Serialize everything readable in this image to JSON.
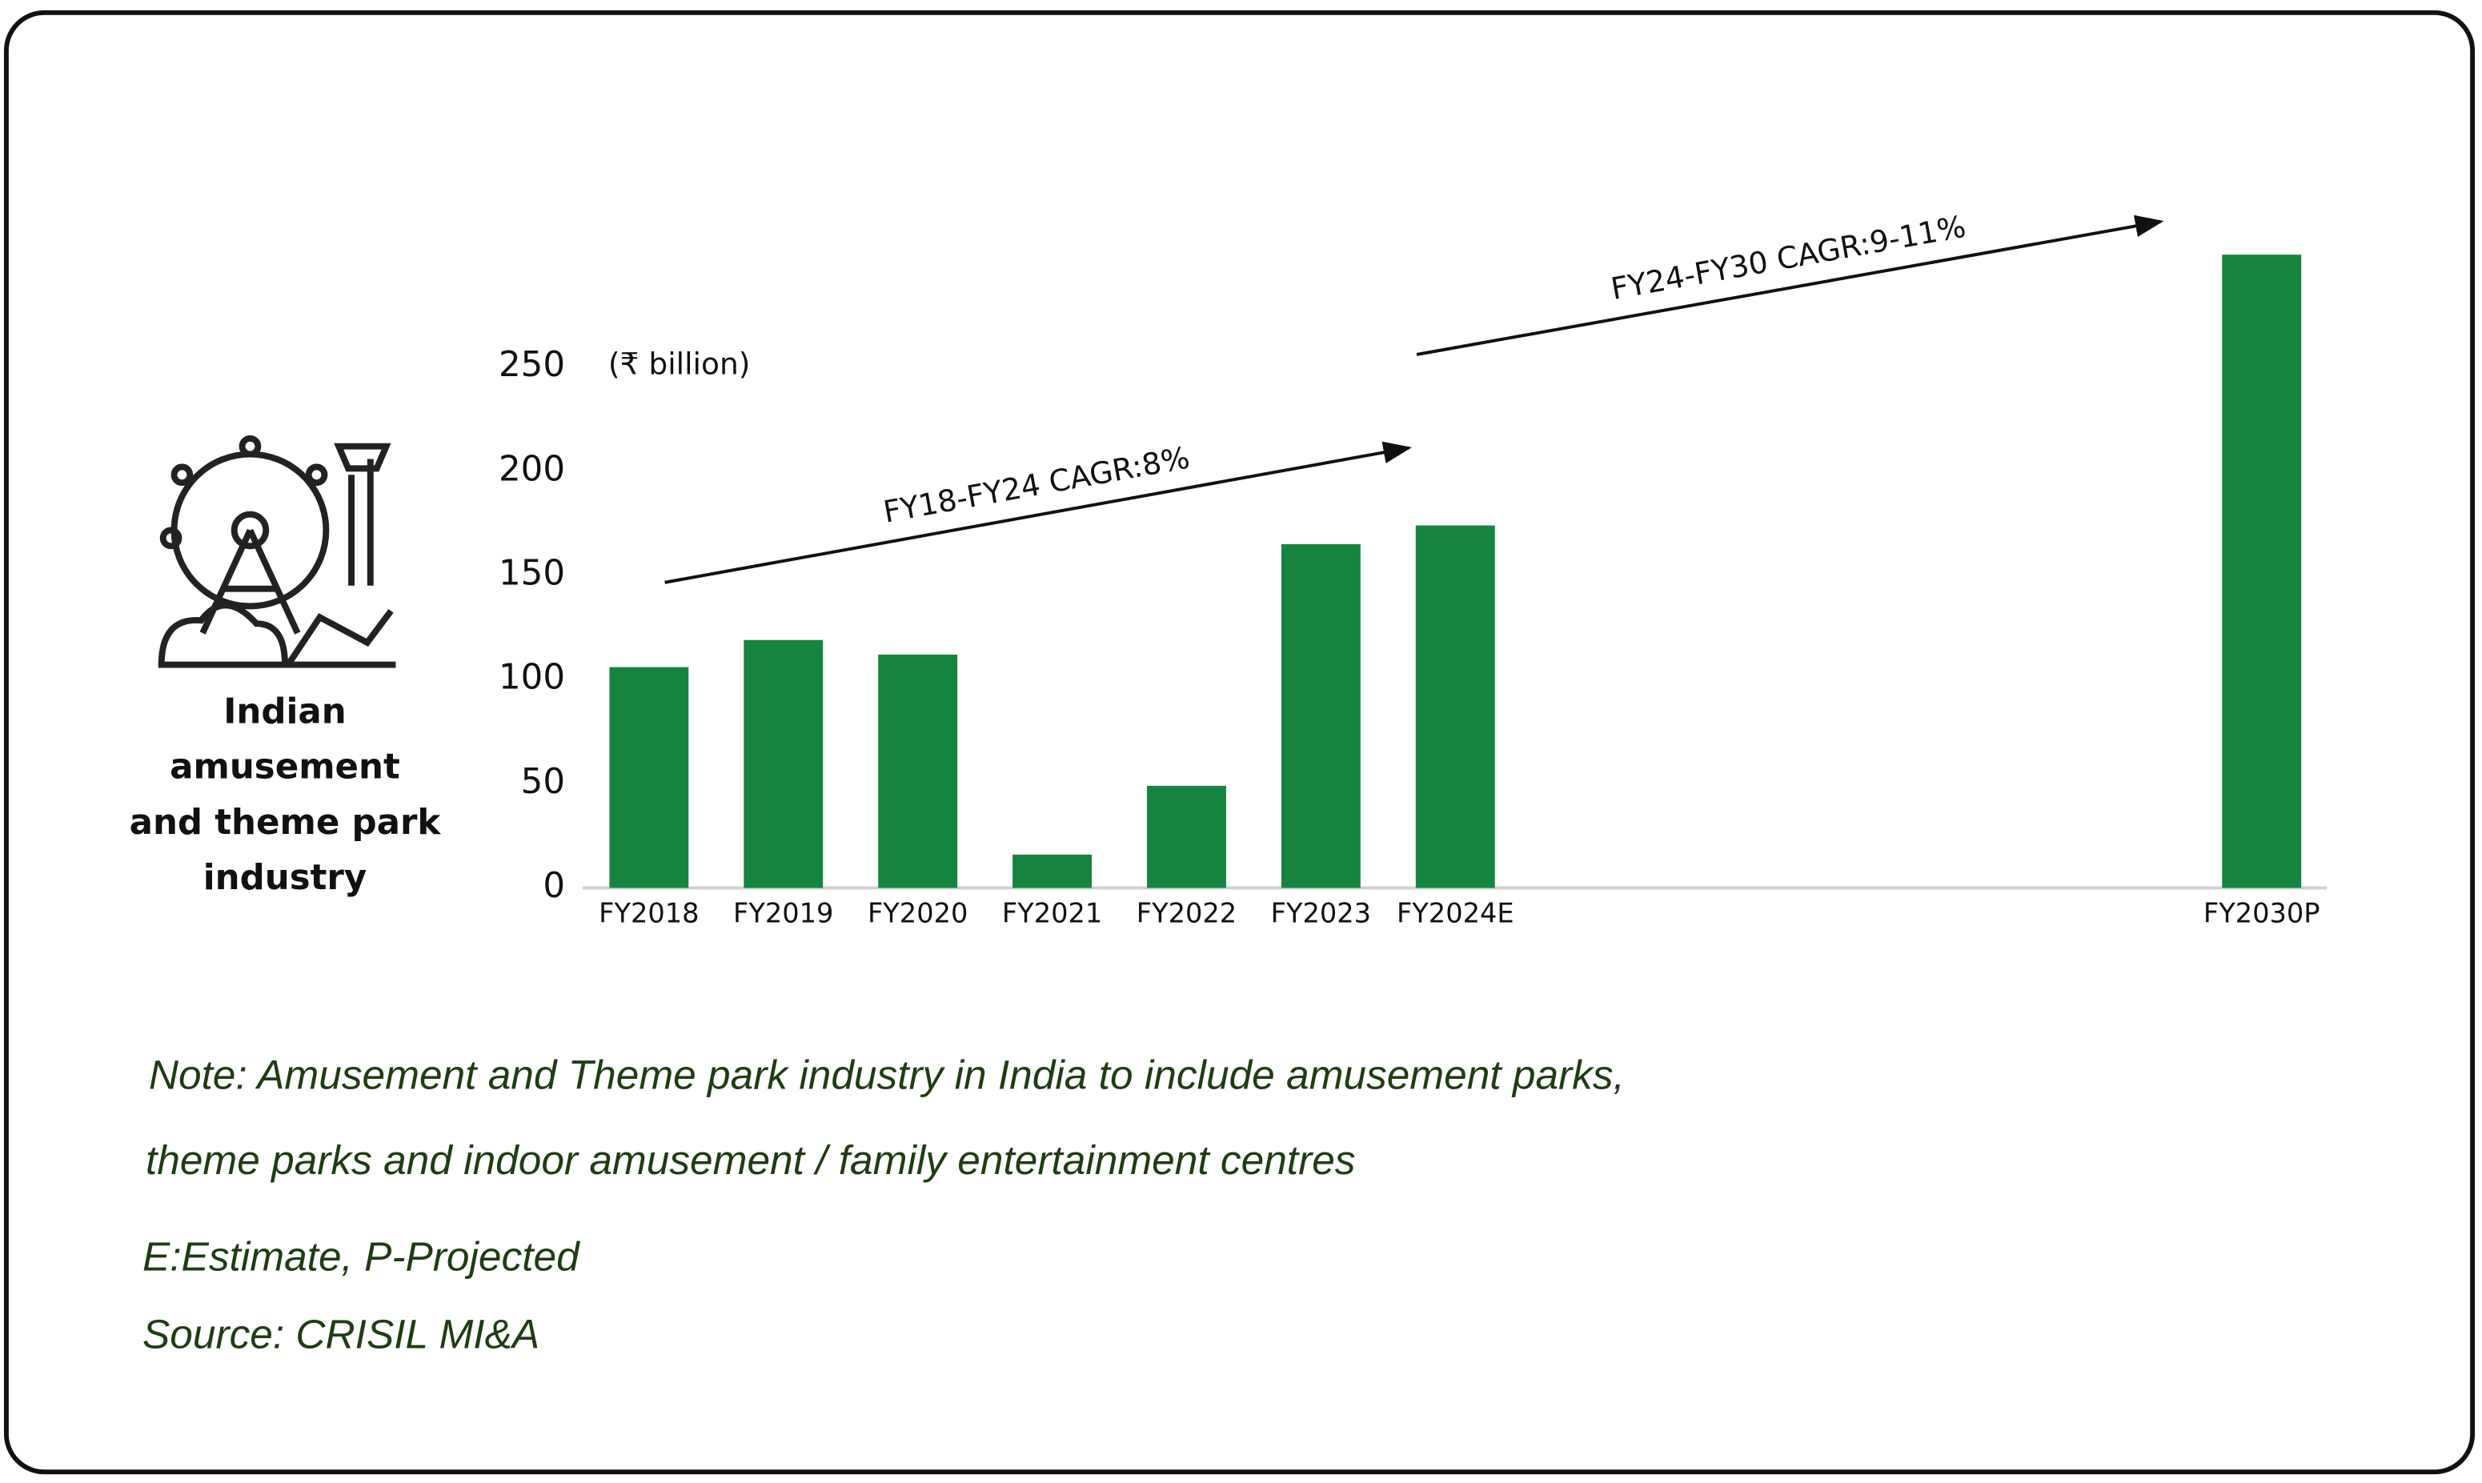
{
  "chart_data": {
    "type": "bar",
    "unit_label": "(₹ billion)",
    "side_label": [
      "Indian",
      "amusement",
      "and theme park",
      "industry"
    ],
    "categories": [
      "FY2018",
      "FY2019",
      "FY2020",
      "FY2021",
      "FY2022",
      "FY2023",
      "FY2024E",
      null,
      null,
      null,
      null,
      null,
      "FY2030P"
    ],
    "values": [
      106,
      119,
      112,
      16,
      49,
      165,
      174,
      null,
      null,
      null,
      null,
      null,
      304
    ],
    "color": "#15843f",
    "ylim": [
      0,
      310
    ],
    "yticks": [
      0,
      50,
      100,
      150,
      200,
      250
    ],
    "annotations": [
      "FY18-FY24 CAGR:8%",
      "FY24-FY30 CAGR:9-11%"
    ]
  },
  "notes": [
    "Note:  Amusement and Theme park industry in India to include amusement parks,",
    "theme parks and indoor amusement / family entertainment centres",
    "E:Estimate, P-Projected",
    "Source: CRISIL MI&A"
  ]
}
